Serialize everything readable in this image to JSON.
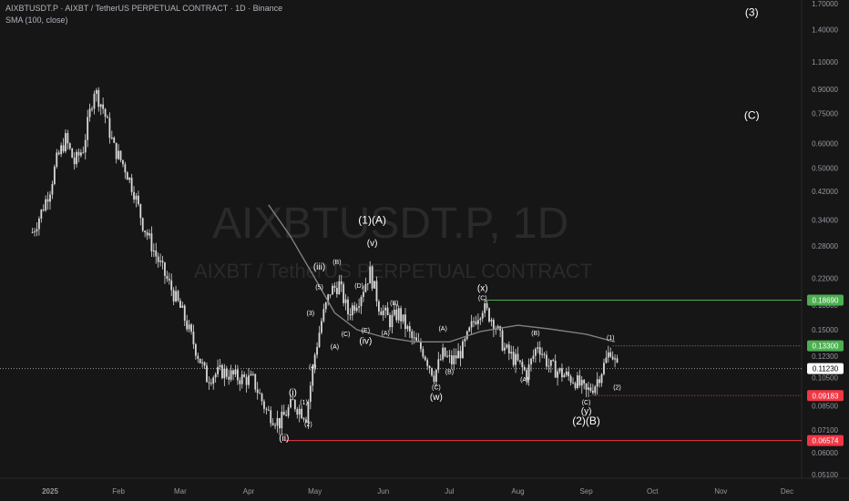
{
  "header": {
    "title": "AIXBTUSDT.P · AIXBT / TetherUS PERPETUAL CONTRACT · 1D · Binance",
    "indicator": "SMA (100, close)"
  },
  "watermark": {
    "symbol": "AIXBTUSDT.P, 1D",
    "description": "AIXBT / TetherUS PERPETUAL CONTRACT"
  },
  "colors": {
    "background": "#161616",
    "candle": "#d9d9d9",
    "sma": "#808080",
    "green_line": "#4caf50",
    "red_line": "#f23645",
    "current_price_tag": "#ffffff"
  },
  "chart_data": {
    "type": "candlestick",
    "scale": "log",
    "y_ticks": [
      "1.70000",
      "1.40000",
      "1.10000",
      "0.90000",
      "0.75000",
      "0.60000",
      "0.50000",
      "0.42000",
      "0.34000",
      "0.28000",
      "0.22000",
      "0.18000",
      "0.15000",
      "0.12300",
      "0.10500",
      "0.08500",
      "0.07100",
      "0.06000",
      "0.05100"
    ],
    "x_ticks": [
      "2025",
      "Feb",
      "Mar",
      "Apr",
      "May",
      "Jun",
      "Jul",
      "Aug",
      "Sep",
      "Oct",
      "Nov",
      "Dec"
    ],
    "price_levels": [
      {
        "label": "0.18690",
        "value": 0.1869,
        "color": "#4caf50",
        "kind": "line"
      },
      {
        "label": "0.13300",
        "value": 0.133,
        "color": "#4caf50",
        "kind": "line"
      },
      {
        "label": "0.11230",
        "value": 0.1123,
        "color": "#ffffff",
        "kind": "current"
      },
      {
        "label": "0.09183",
        "value": 0.09183,
        "color": "#f23645",
        "kind": "dotted"
      },
      {
        "label": "0.06574",
        "value": 0.06574,
        "color": "#f23645",
        "kind": "line"
      }
    ],
    "wave_labels": [
      {
        "text": "(3)",
        "date": "2025-11-15",
        "price": 1.55,
        "size": "large"
      },
      {
        "text": "(C)",
        "date": "2025-11-15",
        "price": 0.72,
        "size": "large"
      },
      {
        "text": "(1)(A)",
        "date": "2025-05-27",
        "price": 0.33,
        "size": "large"
      },
      {
        "text": "(v)",
        "date": "2025-05-27",
        "price": 0.28,
        "size": "medium"
      },
      {
        "text": "(iii)",
        "date": "2025-05-03",
        "price": 0.235,
        "size": "medium"
      },
      {
        "text": "(5)",
        "date": "2025-05-03",
        "price": 0.203,
        "size": "small"
      },
      {
        "text": "(B)",
        "date": "2025-05-11",
        "price": 0.244,
        "size": "small"
      },
      {
        "text": "(D)",
        "date": "2025-05-21",
        "price": 0.205,
        "size": "small"
      },
      {
        "text": "(3)",
        "date": "2025-04-29",
        "price": 0.167,
        "size": "small"
      },
      {
        "text": "(A)",
        "date": "2025-05-10",
        "price": 0.13,
        "size": "small"
      },
      {
        "text": "(C)",
        "date": "2025-05-15",
        "price": 0.143,
        "size": "small"
      },
      {
        "text": "(E)",
        "date": "2025-05-24",
        "price": 0.147,
        "size": "small"
      },
      {
        "text": "(iv)",
        "date": "2025-05-24",
        "price": 0.135,
        "size": "medium"
      },
      {
        "text": "(4)",
        "date": "2025-04-30",
        "price": 0.112,
        "size": "small"
      },
      {
        "text": "(i)",
        "date": "2025-04-21",
        "price": 0.092,
        "size": "medium"
      },
      {
        "text": "(1)",
        "date": "2025-04-26",
        "price": 0.086,
        "size": "small"
      },
      {
        "text": "(2)",
        "date": "2025-04-28",
        "price": 0.073,
        "size": "small"
      },
      {
        "text": "(ii)",
        "date": "2025-04-17",
        "price": 0.0655,
        "size": "medium"
      },
      {
        "text": "(B)",
        "date": "2025-06-06",
        "price": 0.18,
        "size": "small"
      },
      {
        "text": "(A)",
        "date": "2025-06-02",
        "price": 0.144,
        "size": "small"
      },
      {
        "text": "(A)",
        "date": "2025-06-28",
        "price": 0.149,
        "size": "small"
      },
      {
        "text": "(C)",
        "date": "2025-06-25",
        "price": 0.096,
        "size": "small"
      },
      {
        "text": "(B)",
        "date": "2025-07-01",
        "price": 0.108,
        "size": "small"
      },
      {
        "text": "(w)",
        "date": "2025-06-25",
        "price": 0.089,
        "size": "medium"
      },
      {
        "text": "(x)",
        "date": "2025-07-16",
        "price": 0.2,
        "size": "medium"
      },
      {
        "text": "(C)",
        "date": "2025-07-16",
        "price": 0.187,
        "size": "small"
      },
      {
        "text": "(B)",
        "date": "2025-08-09",
        "price": 0.144,
        "size": "small"
      },
      {
        "text": "(A)",
        "date": "2025-08-04",
        "price": 0.102,
        "size": "small"
      },
      {
        "text": "(C)",
        "date": "2025-09-01",
        "price": 0.086,
        "size": "small"
      },
      {
        "text": "(y)",
        "date": "2025-09-01",
        "price": 0.08,
        "size": "medium"
      },
      {
        "text": "(2)(B)",
        "date": "2025-09-01",
        "price": 0.074,
        "size": "large"
      },
      {
        "text": "(1)",
        "date": "2025-09-12",
        "price": 0.139,
        "size": "small"
      },
      {
        "text": "(2)",
        "date": "2025-09-15",
        "price": 0.096,
        "size": "small"
      }
    ],
    "sma_100": [
      {
        "date": "2025-04-10",
        "value": 0.38
      },
      {
        "date": "2025-04-20",
        "value": 0.3
      },
      {
        "date": "2025-05-01",
        "value": 0.22
      },
      {
        "date": "2025-05-10",
        "value": 0.17
      },
      {
        "date": "2025-05-20",
        "value": 0.15
      },
      {
        "date": "2025-06-01",
        "value": 0.142
      },
      {
        "date": "2025-06-15",
        "value": 0.137
      },
      {
        "date": "2025-07-01",
        "value": 0.137
      },
      {
        "date": "2025-07-15",
        "value": 0.148
      },
      {
        "date": "2025-08-01",
        "value": 0.155
      },
      {
        "date": "2025-08-15",
        "value": 0.151
      },
      {
        "date": "2025-09-01",
        "value": 0.145
      },
      {
        "date": "2025-09-14",
        "value": 0.137
      }
    ],
    "price_path": [
      {
        "date": "2024-12-24",
        "value": 0.31
      },
      {
        "date": "2024-12-28",
        "value": 0.36
      },
      {
        "date": "2025-01-01",
        "value": 0.43
      },
      {
        "date": "2025-01-04",
        "value": 0.53
      },
      {
        "date": "2025-01-08",
        "value": 0.62
      },
      {
        "date": "2025-01-12",
        "value": 0.52
      },
      {
        "date": "2025-01-16",
        "value": 0.58
      },
      {
        "date": "2025-01-21",
        "value": 0.9
      },
      {
        "date": "2025-01-25",
        "value": 0.78
      },
      {
        "date": "2025-01-30",
        "value": 0.58
      },
      {
        "date": "2025-02-04",
        "value": 0.5
      },
      {
        "date": "2025-02-08",
        "value": 0.42
      },
      {
        "date": "2025-02-12",
        "value": 0.33
      },
      {
        "date": "2025-02-18",
        "value": 0.26
      },
      {
        "date": "2025-02-24",
        "value": 0.21
      },
      {
        "date": "2025-03-02",
        "value": 0.17
      },
      {
        "date": "2025-03-08",
        "value": 0.13
      },
      {
        "date": "2025-03-13",
        "value": 0.105
      },
      {
        "date": "2025-03-20",
        "value": 0.11
      },
      {
        "date": "2025-03-27",
        "value": 0.105
      },
      {
        "date": "2025-04-03",
        "value": 0.103
      },
      {
        "date": "2025-04-09",
        "value": 0.082
      },
      {
        "date": "2025-04-15",
        "value": 0.075
      },
      {
        "date": "2025-04-21",
        "value": 0.087
      },
      {
        "date": "2025-04-27",
        "value": 0.079
      },
      {
        "date": "2025-05-01",
        "value": 0.125
      },
      {
        "date": "2025-05-04",
        "value": 0.16
      },
      {
        "date": "2025-05-08",
        "value": 0.2
      },
      {
        "date": "2025-05-12",
        "value": 0.21
      },
      {
        "date": "2025-05-16",
        "value": 0.17
      },
      {
        "date": "2025-05-21",
        "value": 0.19
      },
      {
        "date": "2025-05-26",
        "value": 0.23
      },
      {
        "date": "2025-05-30",
        "value": 0.18
      },
      {
        "date": "2025-06-04",
        "value": 0.16
      },
      {
        "date": "2025-06-08",
        "value": 0.17
      },
      {
        "date": "2025-06-14",
        "value": 0.14
      },
      {
        "date": "2025-06-19",
        "value": 0.128
      },
      {
        "date": "2025-06-24",
        "value": 0.107
      },
      {
        "date": "2025-06-28",
        "value": 0.125
      },
      {
        "date": "2025-07-02",
        "value": 0.118
      },
      {
        "date": "2025-07-07",
        "value": 0.13
      },
      {
        "date": "2025-07-12",
        "value": 0.16
      },
      {
        "date": "2025-07-16",
        "value": 0.178
      },
      {
        "date": "2025-07-21",
        "value": 0.16
      },
      {
        "date": "2025-07-26",
        "value": 0.13
      },
      {
        "date": "2025-08-01",
        "value": 0.117
      },
      {
        "date": "2025-08-05",
        "value": 0.108
      },
      {
        "date": "2025-08-10",
        "value": 0.135
      },
      {
        "date": "2025-08-15",
        "value": 0.115
      },
      {
        "date": "2025-08-21",
        "value": 0.108
      },
      {
        "date": "2025-08-27",
        "value": 0.103
      },
      {
        "date": "2025-09-01",
        "value": 0.094
      },
      {
        "date": "2025-09-05",
        "value": 0.1
      },
      {
        "date": "2025-09-09",
        "value": 0.115
      },
      {
        "date": "2025-09-12",
        "value": 0.13
      },
      {
        "date": "2025-09-15",
        "value": 0.1123
      }
    ]
  }
}
